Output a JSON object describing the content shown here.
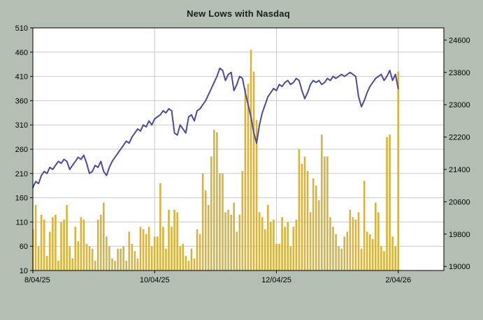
{
  "title": "New Lows with Nasdaq",
  "colors": {
    "background": "#b4bfb4",
    "plot_bg": "#ffffff",
    "grid": "#c9c9c9",
    "frame": "#000000",
    "bars": "#d9b33c",
    "line": "#4b4b9c",
    "text": "#000000",
    "title": "#1c1c1c"
  },
  "chart_data": {
    "type": "bar",
    "title": "New Lows with Nasdaq",
    "x_labels": [
      {
        "index": 0,
        "label": "8/04/25"
      },
      {
        "index": 43,
        "label": "10/04/25"
      },
      {
        "index": 86,
        "label": "12/04/25"
      },
      {
        "index": 129,
        "label": "2/04/26"
      }
    ],
    "left_axis": {
      "min": 10,
      "max": 510,
      "ticks": [
        10,
        60,
        110,
        160,
        210,
        260,
        310,
        360,
        410,
        460,
        510
      ]
    },
    "right_axis": {
      "min": 18900,
      "max": 24900,
      "ticks": [
        19000,
        19800,
        20600,
        21400,
        22200,
        23000,
        23800,
        24600
      ]
    },
    "series": [
      {
        "name": "New Lows",
        "type": "bar",
        "axis": "left",
        "values": [
          95,
          145,
          60,
          125,
          115,
          40,
          90,
          120,
          125,
          30,
          110,
          115,
          145,
          60,
          35,
          100,
          70,
          120,
          115,
          65,
          60,
          55,
          30,
          115,
          125,
          150,
          80,
          60,
          35,
          30,
          55,
          55,
          60,
          30,
          90,
          65,
          50,
          35,
          100,
          95,
          85,
          100,
          60,
          80,
          80,
          190,
          100,
          55,
          135,
          100,
          135,
          130,
          60,
          65,
          40,
          30,
          55,
          35,
          95,
          85,
          210,
          175,
          145,
          245,
          300,
          295,
          210,
          210,
          130,
          135,
          125,
          150,
          90,
          125,
          215,
          385,
          395,
          465,
          420,
          320,
          130,
          120,
          95,
          145,
          110,
          115,
          65,
          65,
          120,
          100,
          110,
          60,
          100,
          115,
          260,
          230,
          245,
          215,
          130,
          200,
          185,
          155,
          290,
          245,
          245,
          120,
          100,
          85,
          60,
          55,
          80,
          90,
          135,
          120,
          115,
          130,
          55,
          195,
          90,
          85,
          75,
          150,
          130,
          60,
          50,
          285,
          290,
          80,
          60,
          420
        ]
      },
      {
        "name": "Nasdaq",
        "type": "line",
        "axis": "right",
        "values": [
          20950,
          21100,
          21050,
          21250,
          21350,
          21300,
          21450,
          21400,
          21500,
          21600,
          21550,
          21650,
          21600,
          21400,
          21500,
          21600,
          21700,
          21650,
          21750,
          21550,
          21300,
          21350,
          21500,
          21450,
          21600,
          21350,
          21250,
          21450,
          21600,
          21700,
          21800,
          21900,
          22000,
          22100,
          22050,
          22200,
          22300,
          22400,
          22350,
          22500,
          22450,
          22600,
          22500,
          22650,
          22700,
          22750,
          22850,
          22800,
          22900,
          22850,
          22300,
          22250,
          22500,
          22400,
          22300,
          22700,
          22750,
          22600,
          22850,
          22900,
          23000,
          23100,
          23250,
          23400,
          23550,
          23700,
          23900,
          23850,
          23600,
          23750,
          23800,
          23350,
          23500,
          23700,
          23650,
          23300,
          23000,
          22700,
          22300,
          22050,
          22500,
          22800,
          23000,
          23200,
          23300,
          23400,
          23350,
          23500,
          23450,
          23550,
          23600,
          23500,
          23550,
          23650,
          23600,
          23350,
          23150,
          23300,
          23500,
          23600,
          23550,
          23600,
          23500,
          23550,
          23650,
          23600,
          23700,
          23650,
          23700,
          23750,
          23700,
          23750,
          23800,
          23750,
          23700,
          23200,
          22950,
          23100,
          23300,
          23450,
          23550,
          23650,
          23700,
          23750,
          23600,
          23700,
          23850,
          23600,
          23750,
          23400
        ]
      }
    ]
  }
}
